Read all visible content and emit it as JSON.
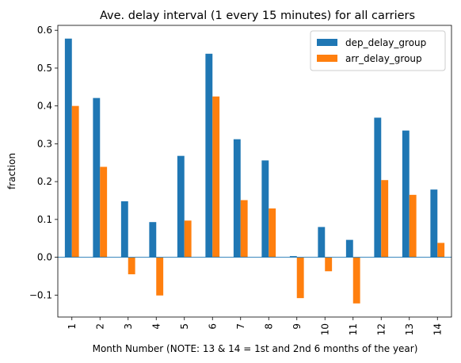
{
  "chart_data": {
    "type": "bar",
    "title": "Ave. delay interval (1 every 15 minutes) for all carriers",
    "xlabel": "Month Number (NOTE: 13 & 14 = 1st and 2nd 6 months of the year)",
    "ylabel": "fraction",
    "categories": [
      "1",
      "2",
      "3",
      "4",
      "5",
      "6",
      "7",
      "8",
      "9",
      "10",
      "11",
      "12",
      "13",
      "14"
    ],
    "series": [
      {
        "name": "dep_delay_group",
        "color": "#1f77b4",
        "values": [
          0.578,
          0.421,
          0.148,
          0.093,
          0.268,
          0.538,
          0.312,
          0.256,
          0.003,
          0.08,
          0.046,
          0.369,
          0.335,
          0.179
        ]
      },
      {
        "name": "arr_delay_group",
        "color": "#ff7f0e",
        "values": [
          0.4,
          0.239,
          -0.045,
          -0.101,
          0.097,
          0.425,
          0.151,
          0.129,
          -0.108,
          -0.037,
          -0.122,
          0.204,
          0.165,
          0.038
        ]
      }
    ],
    "ylim": [
      -0.158,
      0.613
    ],
    "yticks": [
      -0.1,
      0.0,
      0.1,
      0.2,
      0.3,
      0.4,
      0.5,
      0.6
    ],
    "ytick_labels": [
      "−0.1",
      "0.0",
      "0.1",
      "0.2",
      "0.3",
      "0.4",
      "0.5",
      "0.6"
    ],
    "legend_position": "top-right",
    "grid": false,
    "zero_line_color": "#1f77b4"
  }
}
